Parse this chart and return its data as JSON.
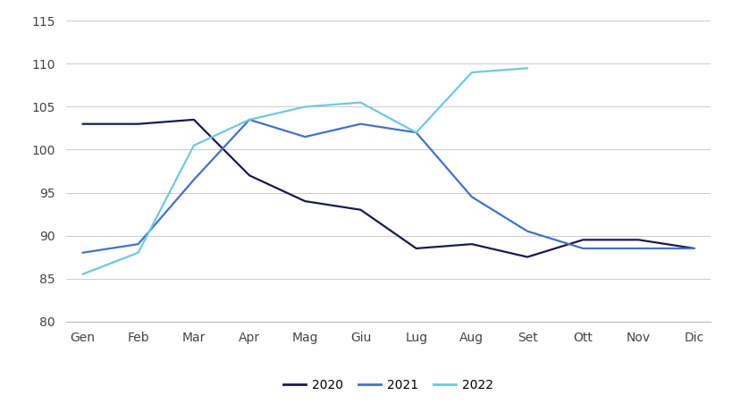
{
  "months": [
    "Gen",
    "Feb",
    "Mar",
    "Apr",
    "Mag",
    "Giu",
    "Lug",
    "Aug",
    "Set",
    "Ott",
    "Nov",
    "Dic"
  ],
  "series": {
    "2020": [
      103.0,
      103.0,
      103.5,
      97.0,
      94.0,
      93.0,
      88.5,
      89.0,
      87.5,
      89.5,
      89.5,
      88.5
    ],
    "2021": [
      88.0,
      89.0,
      96.5,
      103.5,
      101.5,
      103.0,
      102.0,
      94.5,
      90.5,
      88.5,
      88.5,
      88.5
    ],
    "2022": [
      85.5,
      88.0,
      100.5,
      103.5,
      105.0,
      105.5,
      102.0,
      109.0,
      109.5,
      null,
      null,
      null
    ]
  },
  "colors": {
    "2020": "#1a1a4e",
    "2021": "#4472c4",
    "2022": "#70c8e0"
  },
  "ylim": [
    80,
    116
  ],
  "yticks": [
    80,
    85,
    90,
    95,
    100,
    105,
    110,
    115
  ],
  "legend_labels": [
    "2020",
    "2021",
    "2022"
  ],
  "background_color": "#ffffff",
  "grid_color": "#cccccc",
  "line_width": 1.6,
  "font_size": 10
}
